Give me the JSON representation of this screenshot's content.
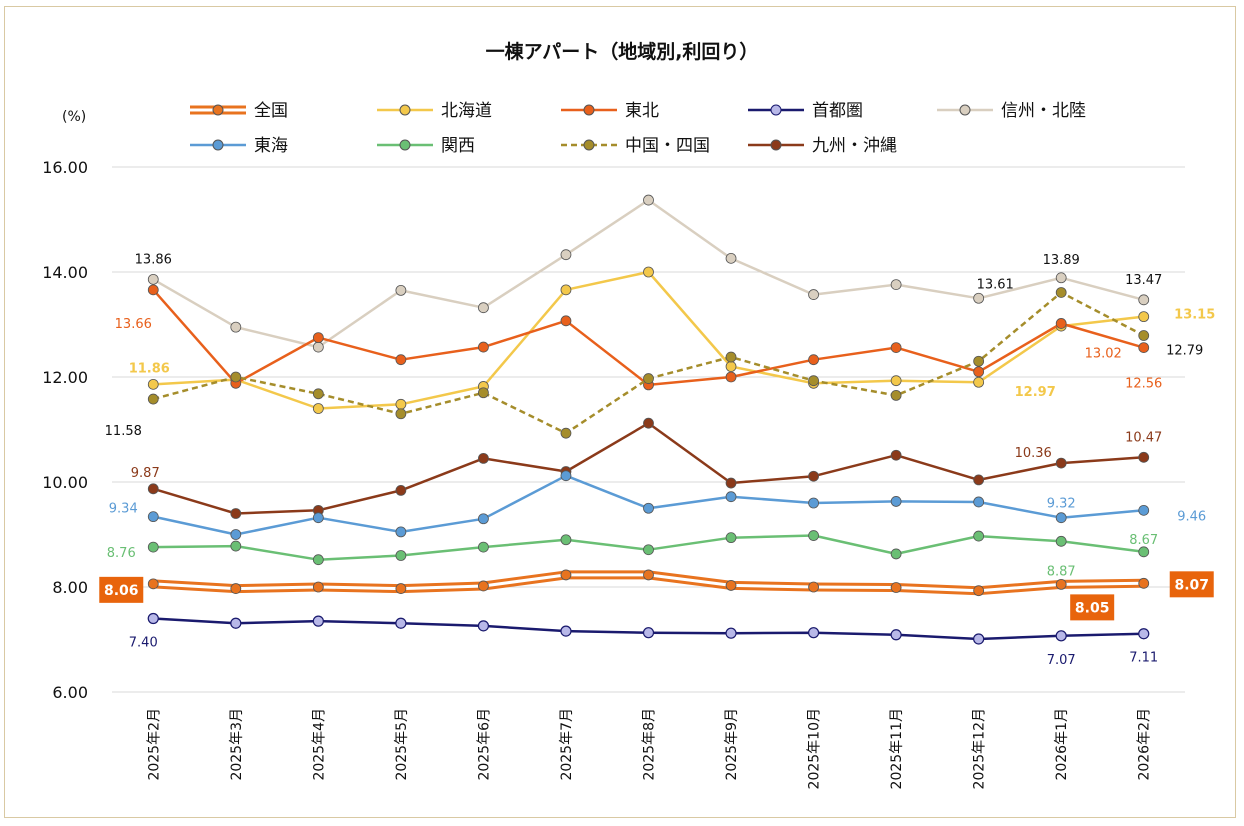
{
  "chart_data": {
    "type": "line",
    "title": "一棟アパート（地域別,利回り）",
    "ylabel": "(%)",
    "ylim": [
      6,
      16
    ],
    "yticks": [
      "6.00",
      "8.00",
      "10.00",
      "12.00",
      "14.00",
      "16.00"
    ],
    "grid": true,
    "legend": "top",
    "categories": [
      "2025年2月",
      "2025年3月",
      "2025年4月",
      "2025年5月",
      "2025年6月",
      "2025年7月",
      "2025年8月",
      "2025年9月",
      "2025年10月",
      "2025年11月",
      "2025年12月",
      "2026年1月",
      "2026年2月"
    ],
    "series": [
      {
        "name": "全国",
        "color": "#e8731f",
        "style": "double",
        "values": [
          8.06,
          7.97,
          8.0,
          7.97,
          8.02,
          8.23,
          8.23,
          8.03,
          8.0,
          7.99,
          7.93,
          8.05,
          8.07
        ]
      },
      {
        "name": "北海道",
        "color": "#f3c84b",
        "style": "solid",
        "values": [
          11.86,
          11.95,
          11.4,
          11.48,
          11.82,
          13.66,
          14.0,
          12.2,
          11.88,
          11.93,
          11.9,
          12.97,
          13.15
        ]
      },
      {
        "name": "東北",
        "color": "#e8601c",
        "style": "solid",
        "values": [
          13.66,
          11.88,
          12.75,
          12.33,
          12.57,
          13.07,
          11.85,
          12.0,
          12.33,
          12.56,
          12.1,
          13.02,
          12.56
        ]
      },
      {
        "name": "首都圏",
        "color": "#1a1a6e",
        "style": "solid",
        "values": [
          7.4,
          7.31,
          7.35,
          7.31,
          7.26,
          7.16,
          7.13,
          7.12,
          7.13,
          7.09,
          7.01,
          7.07,
          7.11
        ]
      },
      {
        "name": "信州・北陸",
        "color": "#d9cfc0",
        "style": "solid",
        "values": [
          13.86,
          12.95,
          12.57,
          13.65,
          13.32,
          14.33,
          15.37,
          14.26,
          13.57,
          13.76,
          13.5,
          13.89,
          13.47
        ]
      },
      {
        "name": "東海",
        "color": "#5b9bd5",
        "style": "solid",
        "values": [
          9.34,
          9.0,
          9.32,
          9.05,
          9.3,
          10.12,
          9.5,
          9.72,
          9.6,
          9.63,
          9.62,
          9.32,
          9.46
        ]
      },
      {
        "name": "関西",
        "color": "#6abf74",
        "style": "solid",
        "values": [
          8.76,
          8.78,
          8.52,
          8.6,
          8.76,
          8.9,
          8.71,
          8.94,
          8.98,
          8.63,
          8.97,
          8.87,
          8.67
        ]
      },
      {
        "name": "中国・四国",
        "color": "#a58d2b",
        "style": "dashed",
        "values": [
          11.58,
          12.0,
          11.68,
          11.3,
          11.7,
          10.93,
          11.97,
          12.38,
          11.93,
          11.65,
          12.3,
          13.61,
          12.79
        ]
      },
      {
        "name": "九州・沖縄",
        "color": "#8b3a1a",
        "style": "solid",
        "values": [
          9.87,
          9.4,
          9.46,
          9.84,
          10.45,
          10.2,
          11.12,
          9.98,
          10.11,
          10.51,
          10.04,
          10.36,
          10.47
        ]
      }
    ],
    "annotations": [
      {
        "text": "13.86",
        "series": "信州・北陸",
        "index": 0
      },
      {
        "text": "13.66",
        "series": "東北",
        "index": 0
      },
      {
        "text": "11.86",
        "series": "北海道",
        "index": 0
      },
      {
        "text": "11.58",
        "series": "中国・四国",
        "index": 0
      },
      {
        "text": "9.87",
        "series": "九州・沖縄",
        "index": 0
      },
      {
        "text": "9.34",
        "series": "東海",
        "index": 0
      },
      {
        "text": "8.76",
        "series": "関西",
        "index": 0
      },
      {
        "text": "8.06",
        "series": "全国",
        "index": 0
      },
      {
        "text": "7.40",
        "series": "首都圏",
        "index": 0
      },
      {
        "text": "13.89",
        "series": "信州・北陸",
        "index": 11
      },
      {
        "text": "13.61",
        "series": "中国・四国",
        "index": 11
      },
      {
        "text": "13.02",
        "series": "東北",
        "index": 11
      },
      {
        "text": "12.97",
        "series": "北海道",
        "index": 11
      },
      {
        "text": "10.36",
        "series": "九州・沖縄",
        "index": 11
      },
      {
        "text": "9.32",
        "series": "東海",
        "index": 11
      },
      {
        "text": "8.87",
        "series": "関西",
        "index": 11
      },
      {
        "text": "8.05",
        "series": "全国",
        "index": 11
      },
      {
        "text": "7.07",
        "series": "首都圏",
        "index": 11
      },
      {
        "text": "13.47",
        "series": "信州・北陸",
        "index": 12
      },
      {
        "text": "13.15",
        "series": "北海道",
        "index": 12
      },
      {
        "text": "12.79",
        "series": "中国・四国",
        "index": 12
      },
      {
        "text": "12.56",
        "series": "東北",
        "index": 12
      },
      {
        "text": "10.47",
        "series": "九州・沖縄",
        "index": 12
      },
      {
        "text": "9.46",
        "series": "東海",
        "index": 12
      },
      {
        "text": "8.67",
        "series": "関西",
        "index": 12
      },
      {
        "text": "8.07",
        "series": "全国",
        "index": 12
      },
      {
        "text": "7.11",
        "series": "首都圏",
        "index": 12
      }
    ]
  }
}
